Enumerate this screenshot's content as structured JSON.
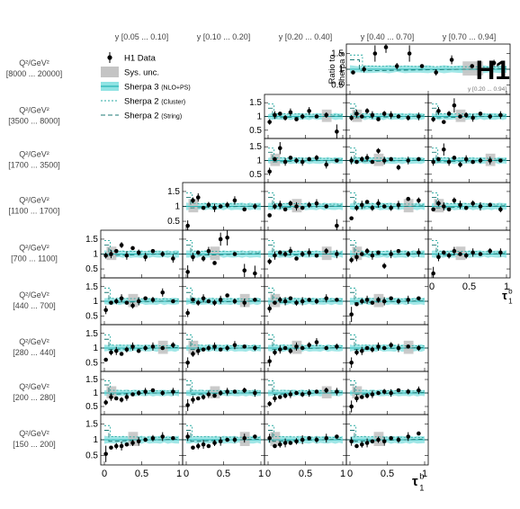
{
  "chart_data": {
    "type": "scatter",
    "experiment": "H1",
    "legend": {
      "placement": "top-left",
      "entries": [
        {
          "name": "H1 Data",
          "style": "marker-errorbar",
          "color": "#000000"
        },
        {
          "name": "Sys. unc.",
          "style": "box",
          "color": "#c4c4c4"
        },
        {
          "name": "Sherpa 3",
          "note": "(NLO+PS)",
          "style": "band-line",
          "color": "#27b4b4",
          "band_color": "#8fe3e3"
        },
        {
          "name": "Sherpa 2",
          "note": "(Cluster)",
          "style": "dashed-short",
          "color": "#27a9a0"
        },
        {
          "name": "Sherpa 2",
          "note": "(String)",
          "style": "dashed-long",
          "color": "#1c7a75"
        }
      ]
    },
    "y_bins": [
      "y  [0.05 ... 0.10]",
      "y  [0.10 ... 0.20]",
      "y  [0.20 ... 0.40]",
      "y  [0.40 ... 0.70]",
      "y  [0.70 ... 0.94]"
    ],
    "q2_label": "Q²/GeV²",
    "q2_bins": [
      "[8000 ... 20000]",
      "[3500 ... 8000]",
      "[1700 ... 3500]",
      "[1100 ... 1700]",
      "[700 ... 1100]",
      "[440 ... 700]",
      "[280 ... 440]",
      "[200 ... 280]",
      "[150 ... 200]"
    ],
    "y_axis_title": [
      "Ratio to",
      "Sherpa 3"
    ],
    "inset_label": "y [0.20 ... 0.94]",
    "x_axis_title": "τ",
    "x_axis_title_sup": "b",
    "x_axis_title_sub": "1",
    "xlim": [
      0,
      1
    ],
    "ylim": [
      0.2,
      1.8
    ],
    "x_ticks": [
      0,
      0.5,
      1
    ],
    "x_tick_labels": [
      "0",
      "0.5",
      "1"
    ],
    "y_ticks": [
      0.5,
      1,
      1.5
    ],
    "y_tick_labels": [
      "0.5",
      "1",
      "1.5"
    ],
    "x_points": [
      0.02,
      0.09,
      0.16,
      0.23,
      0.3,
      0.38,
      0.46,
      0.55,
      0.65,
      0.78,
      0.92
    ],
    "panels": [
      {
        "q2": 0,
        "col": 3,
        "special": "merged",
        "y": [
          0.9,
          1.0,
          1.5,
          1.7,
          1.1,
          1.5,
          1.1,
          0.9,
          1.3,
          1.1,
          1.2
        ]
      },
      {
        "q2": 1,
        "col": 2,
        "y": [
          0.8,
          1.05,
          1.1,
          0.95,
          1.15,
          0.9,
          1.0,
          1.2,
          1.0,
          1.05,
          0.45
        ]
      },
      {
        "q2": 1,
        "col": 3,
        "y": [
          0.95,
          1.1,
          1.0,
          1.2,
          1.05,
          0.9,
          1.1,
          1.05,
          1.0,
          0.95,
          1.0
        ]
      },
      {
        "q2": 1,
        "col": 4,
        "y": [
          0.9,
          1.2,
          0.8,
          1.1,
          1.4,
          1.0,
          1.05,
          0.95,
          1.1,
          1.0,
          1.05
        ]
      },
      {
        "q2": 2,
        "col": 2,
        "y": [
          0.6,
          1.05,
          1.45,
          0.95,
          1.1,
          1.0,
          0.95,
          1.05,
          1.1,
          0.85,
          1.0
        ]
      },
      {
        "q2": 2,
        "col": 3,
        "y": [
          1.0,
          0.95,
          1.05,
          1.1,
          0.95,
          1.35,
          1.0,
          1.05,
          0.75,
          1.0,
          1.05
        ]
      },
      {
        "q2": 2,
        "col": 4,
        "y": [
          0.95,
          1.05,
          1.4,
          0.95,
          1.1,
          0.85,
          1.05,
          0.95,
          1.0,
          1.0,
          1.0
        ]
      },
      {
        "q2": 3,
        "col": 1,
        "y": [
          0.35,
          1.2,
          1.3,
          0.95,
          1.05,
          0.95,
          1.0,
          1.05,
          1.2,
          0.9,
          1.0
        ]
      },
      {
        "q2": 3,
        "col": 2,
        "y": [
          0.7,
          1.0,
          1.05,
          0.9,
          1.1,
          1.0,
          0.95,
          1.05,
          1.1,
          1.0,
          0.35
        ]
      },
      {
        "q2": 3,
        "col": 3,
        "y": [
          0.6,
          0.95,
          1.05,
          1.15,
          0.95,
          1.1,
          1.0,
          0.95,
          1.05,
          1.25,
          1.2
        ]
      },
      {
        "q2": 3,
        "col": 4,
        "y": [
          0.9,
          1.1,
          1.0,
          0.9,
          1.2,
          1.05,
          0.95,
          1.1,
          1.0,
          1.05,
          0.9
        ]
      },
      {
        "q2": 4,
        "col": 0,
        "y": [
          0.95,
          1.0,
          1.1,
          1.3,
          0.95,
          1.2,
          1.05,
          0.9,
          1.1,
          1.0,
          0.85
        ]
      },
      {
        "q2": 4,
        "col": 1,
        "y": [
          0.4,
          0.9,
          1.05,
          0.85,
          1.1,
          0.7,
          1.5,
          1.55,
          1.0,
          0.45,
          0.35
        ]
      },
      {
        "q2": 4,
        "col": 2,
        "y": [
          0.75,
          0.95,
          1.05,
          1.0,
          1.1,
          0.85,
          1.0,
          1.05,
          0.95,
          1.1,
          1.0
        ]
      },
      {
        "q2": 4,
        "col": 3,
        "y": [
          0.8,
          0.9,
          1.0,
          1.1,
          0.95,
          1.05,
          0.6,
          1.0,
          1.1,
          1.0,
          1.05
        ]
      },
      {
        "q2": 4,
        "col": 4,
        "y": [
          0.35,
          0.9,
          1.05,
          0.95,
          1.1,
          1.0,
          0.95,
          1.05,
          1.0,
          1.1,
          1.05
        ]
      },
      {
        "q2": 5,
        "col": 0,
        "y": [
          0.7,
          0.95,
          1.0,
          1.1,
          0.95,
          0.85,
          1.0,
          1.1,
          1.05,
          1.3,
          1.0
        ]
      },
      {
        "q2": 5,
        "col": 1,
        "y": [
          0.6,
          1.05,
          0.95,
          1.1,
          1.0,
          0.95,
          1.05,
          1.2,
          1.0,
          0.95,
          1.05
        ]
      },
      {
        "q2": 5,
        "col": 2,
        "y": [
          0.75,
          0.95,
          1.05,
          1.0,
          1.1,
          0.95,
          1.0,
          1.05,
          1.0,
          1.1,
          1.05
        ]
      },
      {
        "q2": 5,
        "col": 3,
        "y": [
          0.55,
          0.9,
          1.0,
          1.05,
          0.95,
          1.05,
          1.0,
          1.1,
          1.0,
          1.05,
          1.1
        ]
      },
      {
        "q2": 6,
        "col": 0,
        "y": [
          0.6,
          0.85,
          0.9,
          0.8,
          0.95,
          1.05,
          0.9,
          1.0,
          1.05,
          1.0,
          1.1
        ]
      },
      {
        "q2": 6,
        "col": 1,
        "y": [
          0.5,
          0.8,
          0.9,
          0.95,
          1.0,
          1.05,
          0.95,
          1.0,
          1.1,
          1.05,
          1.0
        ]
      },
      {
        "q2": 6,
        "col": 2,
        "y": [
          0.55,
          0.85,
          0.95,
          1.0,
          0.9,
          1.05,
          1.0,
          1.1,
          1.2,
          1.0,
          1.05
        ]
      },
      {
        "q2": 6,
        "col": 3,
        "y": [
          0.5,
          0.85,
          0.9,
          1.0,
          0.95,
          1.05,
          1.0,
          1.1,
          1.0,
          1.05,
          1.0
        ]
      },
      {
        "q2": 7,
        "col": 0,
        "y": [
          0.65,
          0.85,
          0.8,
          0.75,
          0.85,
          0.95,
          1.0,
          1.05,
          1.1,
          1.0,
          1.05
        ]
      },
      {
        "q2": 7,
        "col": 1,
        "y": [
          0.55,
          0.75,
          0.8,
          0.85,
          0.95,
          0.9,
          1.0,
          1.05,
          1.05,
          1.1,
          1.0
        ]
      },
      {
        "q2": 7,
        "col": 2,
        "y": [
          0.6,
          0.8,
          0.85,
          0.9,
          0.95,
          1.0,
          0.95,
          1.0,
          1.05,
          1.1,
          1.05
        ]
      },
      {
        "q2": 7,
        "col": 3,
        "y": [
          0.5,
          0.8,
          0.85,
          0.9,
          0.95,
          1.0,
          1.05,
          1.0,
          1.1,
          1.05,
          1.1
        ]
      },
      {
        "q2": 8,
        "col": 0,
        "y": [
          0.55,
          0.75,
          0.8,
          0.8,
          0.85,
          0.9,
          0.95,
          1.0,
          1.05,
          1.1,
          1.05
        ]
      },
      {
        "q2": 8,
        "col": 1,
        "y": [
          1.1,
          0.75,
          0.8,
          0.85,
          0.8,
          0.9,
          0.95,
          1.0,
          1.0,
          1.05,
          1.1
        ]
      },
      {
        "q2": 8,
        "col": 2,
        "y": [
          1.05,
          0.8,
          0.85,
          0.9,
          0.9,
          0.95,
          1.0,
          1.05,
          1.0,
          1.05,
          1.1
        ]
      },
      {
        "q2": 8,
        "col": 3,
        "y": [
          0.95,
          0.8,
          0.85,
          0.9,
          0.95,
          1.0,
          0.95,
          1.05,
          1.0,
          1.1,
          1.2
        ]
      }
    ]
  }
}
